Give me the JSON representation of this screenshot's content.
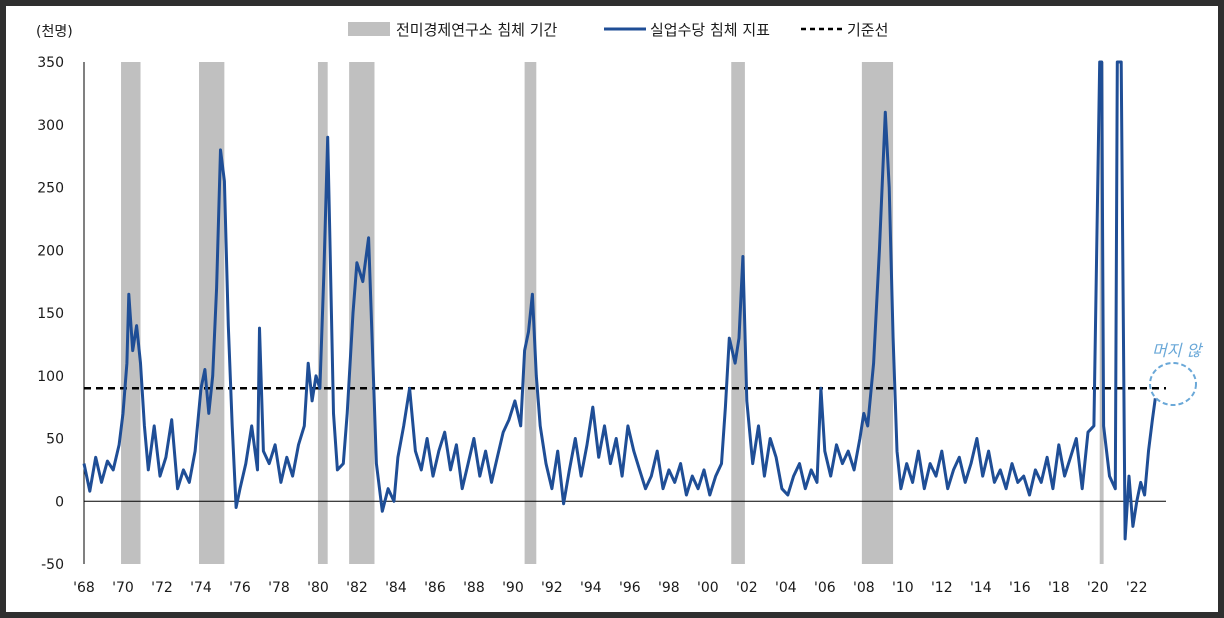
{
  "chart_data": {
    "type": "line",
    "ylabel": "(천명)",
    "ylim": [
      -50,
      350
    ],
    "yticks": [
      350,
      300,
      250,
      200,
      150,
      100,
      50,
      0,
      -50
    ],
    "xlim": [
      1968,
      2023.5
    ],
    "xticks": [
      "'68",
      "'70",
      "'72",
      "'74",
      "'76",
      "'78",
      "'80",
      "'82",
      "'84",
      "'86",
      "'88",
      "'90",
      "'92",
      "'94",
      "'96",
      "'98",
      "'00",
      "'02",
      "'04",
      "'06",
      "'08",
      "'10",
      "'12",
      "'14",
      "'16",
      "'18",
      "'20",
      "'22"
    ],
    "legend": {
      "recession": "전미경제연구소 침체 기간",
      "indicator": "실업수당 침체 지표",
      "baseline": "기준선"
    },
    "annotation": "머지 않",
    "baseline_value": 90,
    "colors": {
      "indicator": "#1f4e96",
      "recession": "#c0c0c0",
      "baseline": "#000000",
      "annotation": "#6aa8d8"
    },
    "recessions": [
      [
        1969.9,
        1970.9
      ],
      [
        1973.9,
        1975.2
      ],
      [
        1980.0,
        1980.5
      ],
      [
        1981.6,
        1982.9
      ],
      [
        1990.6,
        1991.2
      ],
      [
        2001.2,
        2001.9
      ],
      [
        2007.9,
        2009.5
      ],
      [
        2020.1,
        2020.3
      ]
    ],
    "series": [
      {
        "name": "실업수당 침체 지표",
        "points": [
          [
            1968.0,
            30
          ],
          [
            1968.3,
            8
          ],
          [
            1968.6,
            35
          ],
          [
            1968.9,
            15
          ],
          [
            1969.2,
            32
          ],
          [
            1969.5,
            25
          ],
          [
            1969.8,
            45
          ],
          [
            1970.0,
            70
          ],
          [
            1970.2,
            110
          ],
          [
            1970.3,
            165
          ],
          [
            1970.5,
            120
          ],
          [
            1970.7,
            140
          ],
          [
            1970.9,
            110
          ],
          [
            1971.1,
            60
          ],
          [
            1971.3,
            25
          ],
          [
            1971.6,
            60
          ],
          [
            1971.9,
            20
          ],
          [
            1972.2,
            35
          ],
          [
            1972.5,
            65
          ],
          [
            1972.8,
            10
          ],
          [
            1973.1,
            25
          ],
          [
            1973.4,
            15
          ],
          [
            1973.7,
            40
          ],
          [
            1974.0,
            90
          ],
          [
            1974.2,
            105
          ],
          [
            1974.4,
            70
          ],
          [
            1974.6,
            100
          ],
          [
            1974.8,
            170
          ],
          [
            1975.0,
            280
          ],
          [
            1975.2,
            255
          ],
          [
            1975.4,
            140
          ],
          [
            1975.6,
            60
          ],
          [
            1975.8,
            -5
          ],
          [
            1976.0,
            10
          ],
          [
            1976.3,
            30
          ],
          [
            1976.6,
            60
          ],
          [
            1976.9,
            25
          ],
          [
            1977.0,
            138
          ],
          [
            1977.2,
            40
          ],
          [
            1977.5,
            30
          ],
          [
            1977.8,
            45
          ],
          [
            1978.1,
            15
          ],
          [
            1978.4,
            35
          ],
          [
            1978.7,
            20
          ],
          [
            1979.0,
            45
          ],
          [
            1979.3,
            60
          ],
          [
            1979.5,
            110
          ],
          [
            1979.7,
            80
          ],
          [
            1979.9,
            100
          ],
          [
            1980.1,
            90
          ],
          [
            1980.3,
            180
          ],
          [
            1980.5,
            290
          ],
          [
            1980.6,
            220
          ],
          [
            1980.8,
            70
          ],
          [
            1981.0,
            25
          ],
          [
            1981.3,
            30
          ],
          [
            1981.5,
            70
          ],
          [
            1981.8,
            150
          ],
          [
            1982.0,
            190
          ],
          [
            1982.3,
            175
          ],
          [
            1982.6,
            210
          ],
          [
            1982.8,
            120
          ],
          [
            1983.0,
            30
          ],
          [
            1983.3,
            -8
          ],
          [
            1983.6,
            10
          ],
          [
            1983.9,
            0
          ],
          [
            1984.1,
            35
          ],
          [
            1984.4,
            60
          ],
          [
            1984.7,
            90
          ],
          [
            1985.0,
            40
          ],
          [
            1985.3,
            25
          ],
          [
            1985.6,
            50
          ],
          [
            1985.9,
            20
          ],
          [
            1986.2,
            40
          ],
          [
            1986.5,
            55
          ],
          [
            1986.8,
            25
          ],
          [
            1987.1,
            45
          ],
          [
            1987.4,
            10
          ],
          [
            1987.7,
            30
          ],
          [
            1988.0,
            50
          ],
          [
            1988.3,
            20
          ],
          [
            1988.6,
            40
          ],
          [
            1988.9,
            15
          ],
          [
            1989.2,
            35
          ],
          [
            1989.5,
            55
          ],
          [
            1989.8,
            65
          ],
          [
            1990.1,
            80
          ],
          [
            1990.4,
            60
          ],
          [
            1990.6,
            120
          ],
          [
            1990.8,
            135
          ],
          [
            1991.0,
            165
          ],
          [
            1991.2,
            100
          ],
          [
            1991.4,
            60
          ],
          [
            1991.7,
            30
          ],
          [
            1992.0,
            10
          ],
          [
            1992.3,
            40
          ],
          [
            1992.6,
            -2
          ],
          [
            1992.9,
            25
          ],
          [
            1993.2,
            50
          ],
          [
            1993.5,
            20
          ],
          [
            1993.8,
            45
          ],
          [
            1994.1,
            75
          ],
          [
            1994.4,
            35
          ],
          [
            1994.7,
            60
          ],
          [
            1995.0,
            30
          ],
          [
            1995.3,
            50
          ],
          [
            1995.6,
            20
          ],
          [
            1995.9,
            60
          ],
          [
            1996.2,
            40
          ],
          [
            1996.5,
            25
          ],
          [
            1996.8,
            10
          ],
          [
            1997.1,
            20
          ],
          [
            1997.4,
            40
          ],
          [
            1997.7,
            10
          ],
          [
            1998.0,
            25
          ],
          [
            1998.3,
            15
          ],
          [
            1998.6,
            30
          ],
          [
            1998.9,
            5
          ],
          [
            1999.2,
            20
          ],
          [
            1999.5,
            10
          ],
          [
            1999.8,
            25
          ],
          [
            2000.1,
            5
          ],
          [
            2000.4,
            20
          ],
          [
            2000.7,
            30
          ],
          [
            2000.9,
            75
          ],
          [
            2001.1,
            130
          ],
          [
            2001.4,
            110
          ],
          [
            2001.6,
            130
          ],
          [
            2001.8,
            195
          ],
          [
            2002.0,
            80
          ],
          [
            2002.3,
            30
          ],
          [
            2002.6,
            60
          ],
          [
            2002.9,
            20
          ],
          [
            2003.2,
            50
          ],
          [
            2003.5,
            35
          ],
          [
            2003.8,
            10
          ],
          [
            2004.1,
            5
          ],
          [
            2004.4,
            20
          ],
          [
            2004.7,
            30
          ],
          [
            2005.0,
            10
          ],
          [
            2005.3,
            25
          ],
          [
            2005.6,
            15
          ],
          [
            2005.8,
            90
          ],
          [
            2006.0,
            40
          ],
          [
            2006.3,
            20
          ],
          [
            2006.6,
            45
          ],
          [
            2006.9,
            30
          ],
          [
            2007.2,
            40
          ],
          [
            2007.5,
            25
          ],
          [
            2007.8,
            50
          ],
          [
            2008.0,
            70
          ],
          [
            2008.2,
            60
          ],
          [
            2008.5,
            110
          ],
          [
            2008.8,
            200
          ],
          [
            2009.1,
            310
          ],
          [
            2009.3,
            250
          ],
          [
            2009.5,
            130
          ],
          [
            2009.7,
            40
          ],
          [
            2009.9,
            10
          ],
          [
            2010.2,
            30
          ],
          [
            2010.5,
            15
          ],
          [
            2010.8,
            40
          ],
          [
            2011.1,
            10
          ],
          [
            2011.4,
            30
          ],
          [
            2011.7,
            20
          ],
          [
            2012.0,
            40
          ],
          [
            2012.3,
            10
          ],
          [
            2012.6,
            25
          ],
          [
            2012.9,
            35
          ],
          [
            2013.2,
            15
          ],
          [
            2013.5,
            30
          ],
          [
            2013.8,
            50
          ],
          [
            2014.1,
            20
          ],
          [
            2014.4,
            40
          ],
          [
            2014.7,
            15
          ],
          [
            2015.0,
            25
          ],
          [
            2015.3,
            10
          ],
          [
            2015.6,
            30
          ],
          [
            2015.9,
            15
          ],
          [
            2016.2,
            20
          ],
          [
            2016.5,
            5
          ],
          [
            2016.8,
            25
          ],
          [
            2017.1,
            15
          ],
          [
            2017.4,
            35
          ],
          [
            2017.7,
            10
          ],
          [
            2018.0,
            45
          ],
          [
            2018.3,
            20
          ],
          [
            2018.6,
            35
          ],
          [
            2018.9,
            50
          ],
          [
            2019.2,
            10
          ],
          [
            2019.5,
            55
          ],
          [
            2019.8,
            60
          ],
          [
            2020.1,
            350
          ],
          [
            2020.2,
            350
          ],
          [
            2020.3,
            60
          ],
          [
            2020.6,
            20
          ],
          [
            2020.9,
            10
          ],
          [
            2021.0,
            350
          ],
          [
            2021.1,
            350
          ],
          [
            2021.2,
            350
          ],
          [
            2021.4,
            -30
          ],
          [
            2021.6,
            20
          ],
          [
            2021.8,
            -20
          ],
          [
            2022.0,
            0
          ],
          [
            2022.2,
            15
          ],
          [
            2022.4,
            5
          ],
          [
            2022.6,
            40
          ],
          [
            2022.8,
            65
          ],
          [
            2022.95,
            82
          ]
        ]
      }
    ]
  }
}
